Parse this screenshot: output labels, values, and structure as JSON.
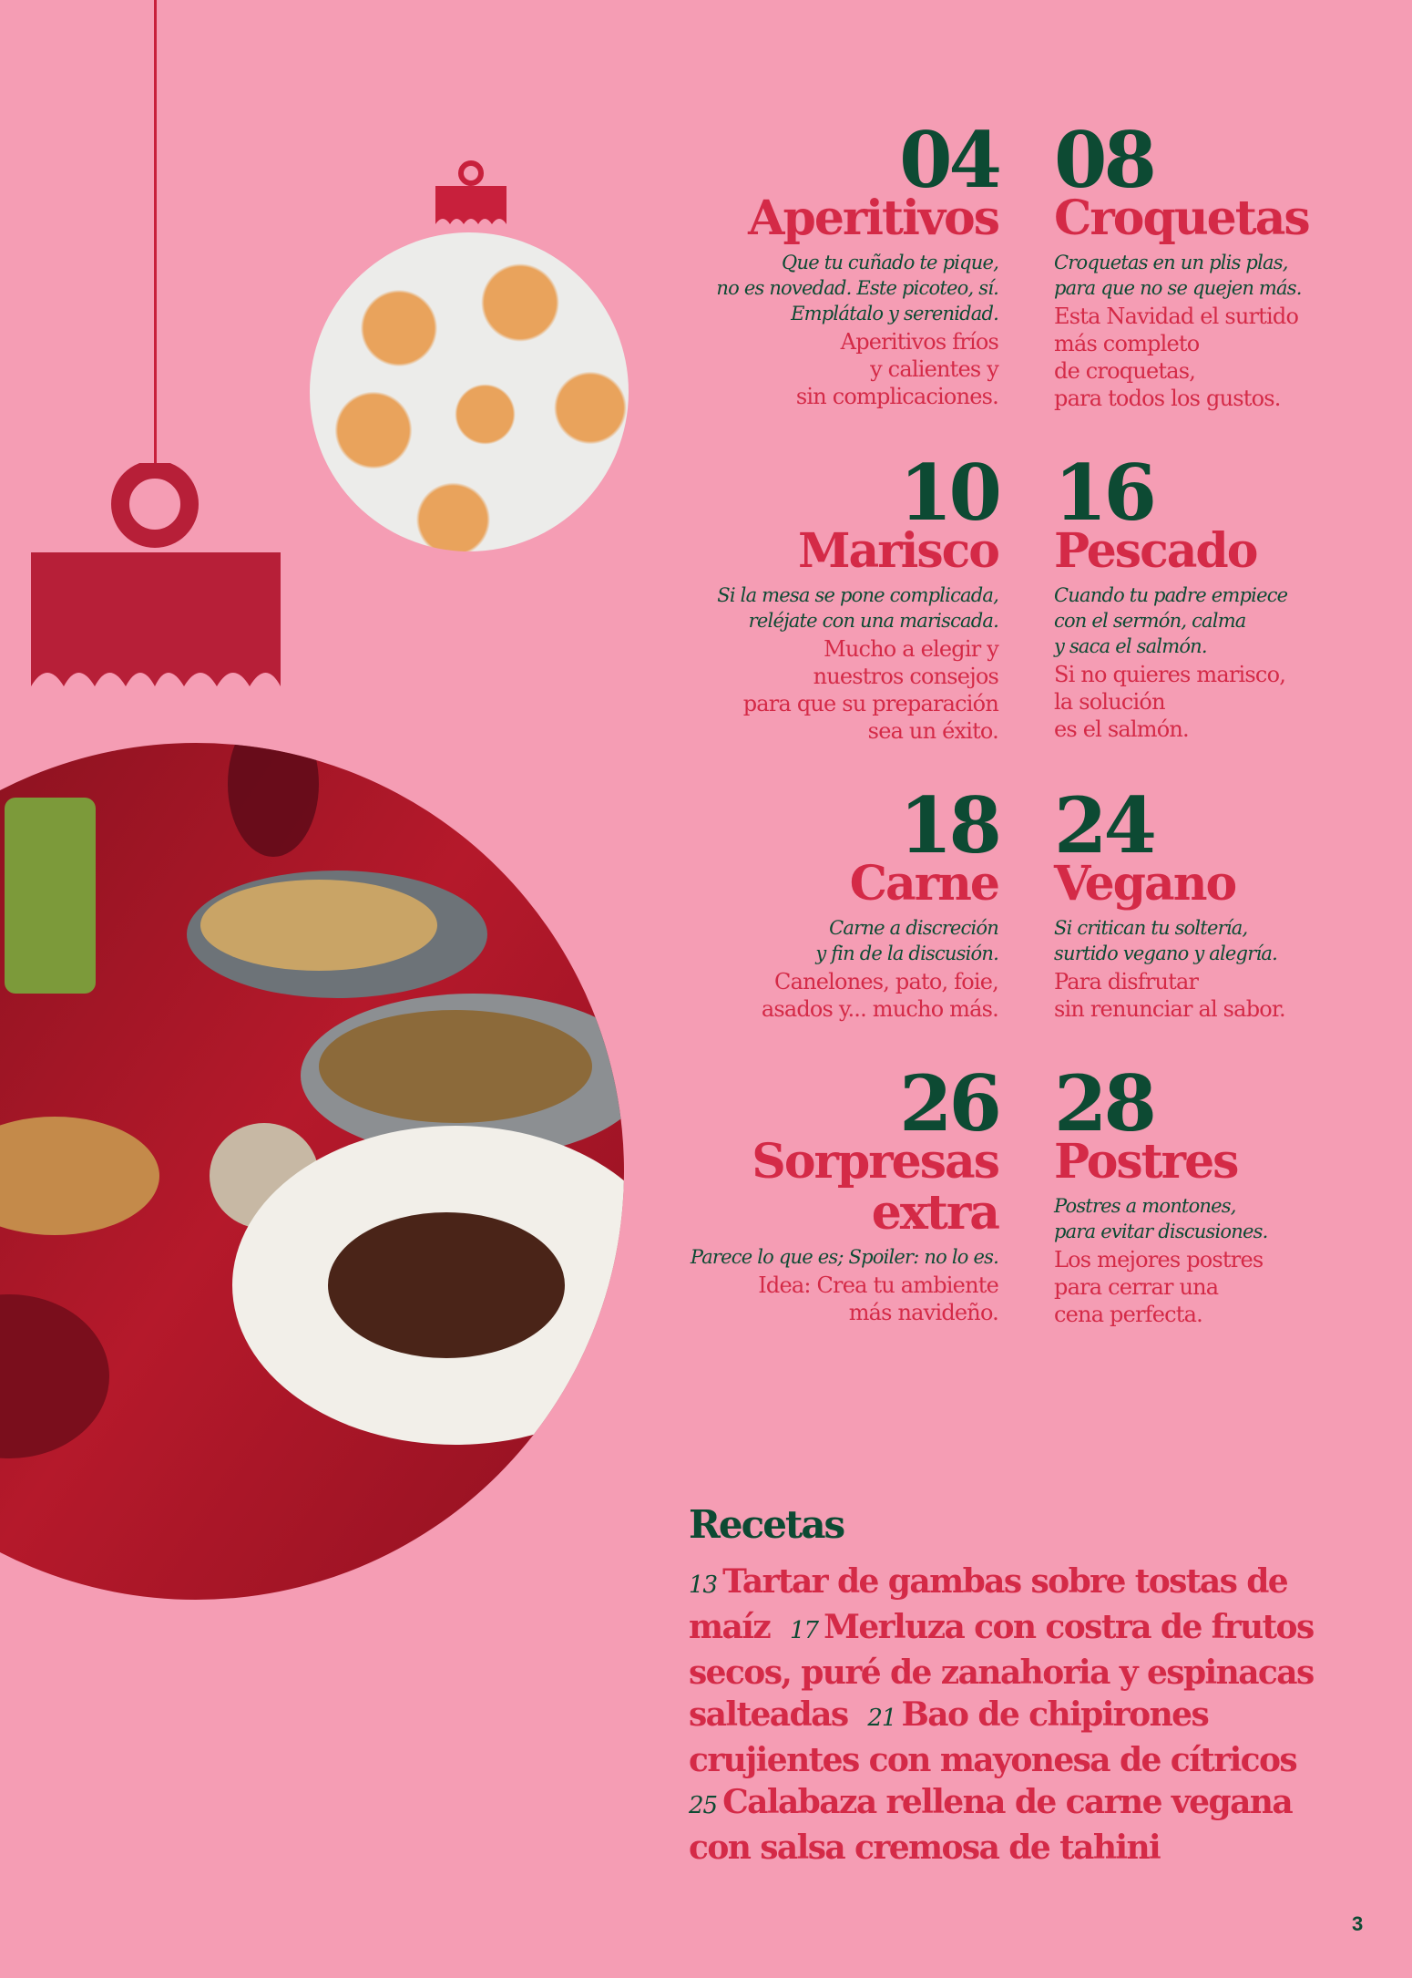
{
  "colors": {
    "background": "#f59db4",
    "green": "#0d4a33",
    "red": "#d42a47",
    "ornament": "#b71f38"
  },
  "sections": [
    {
      "number": "04",
      "title": "Aperitivos",
      "tagline": "Que tu cuñado te pique,\nno es novedad. Este picoteo, sí.\nEmplátalo y serenidad.",
      "description": "Aperitivos fríos\ny calientes y\nsin complicaciones."
    },
    {
      "number": "08",
      "title": "Croquetas",
      "tagline": "Croquetas en un plis plas,\npara que no se quejen más.",
      "description": "Esta Navidad el surtido\nmás completo\nde croquetas,\npara todos los gustos."
    },
    {
      "number": "10",
      "title": "Marisco",
      "tagline": "Si la mesa se pone complicada,\nreléjate con una mariscada.",
      "description": "Mucho a elegir y\nnuestros consejos\npara que su preparación\nsea un éxito."
    },
    {
      "number": "16",
      "title": "Pescado",
      "tagline": "Cuando tu padre empiece\ncon el sermón, calma\n y saca el salmón.",
      "description": "Si no quieres marisco,\nla solución\nes el salmón."
    },
    {
      "number": "18",
      "title": "Carne",
      "tagline": "Carne a discreción\ny fin de la discusión.",
      "description": "Canelones, pato, foie,\nasados y... mucho más."
    },
    {
      "number": "24",
      "title": "Vegano",
      "tagline": "Si critican tu soltería,\nsurtido vegano y alegría.",
      "description": "Para disfrutar\nsin renunciar al sabor."
    },
    {
      "number": "26",
      "title": "Sorpresas\nextra",
      "tagline": "Parece lo que es; Spoiler: no lo es.",
      "description": "Idea: Crea tu ambiente\nmás navideño."
    },
    {
      "number": "28",
      "title": "Postres",
      "tagline": "Postres a montones,\npara evitar discusiones.",
      "description": "Los mejores postres\npara cerrar una\ncena perfecta."
    }
  ],
  "recetas": {
    "heading": "Recetas",
    "items": [
      {
        "page": "13",
        "title": "Tartar de gambas sobre tostas de maíz"
      },
      {
        "page": "17",
        "title": "Merluza con costra de frutos secos, puré de zanahoria y espinacas salteadas"
      },
      {
        "page": "21",
        "title": "Bao de chipirones crujientes con mayonesa de cítricos"
      },
      {
        "page": "25",
        "title": "Calabaza rellena de carne vegana con salsa cremosa de tahini"
      }
    ]
  },
  "page_number": "3"
}
